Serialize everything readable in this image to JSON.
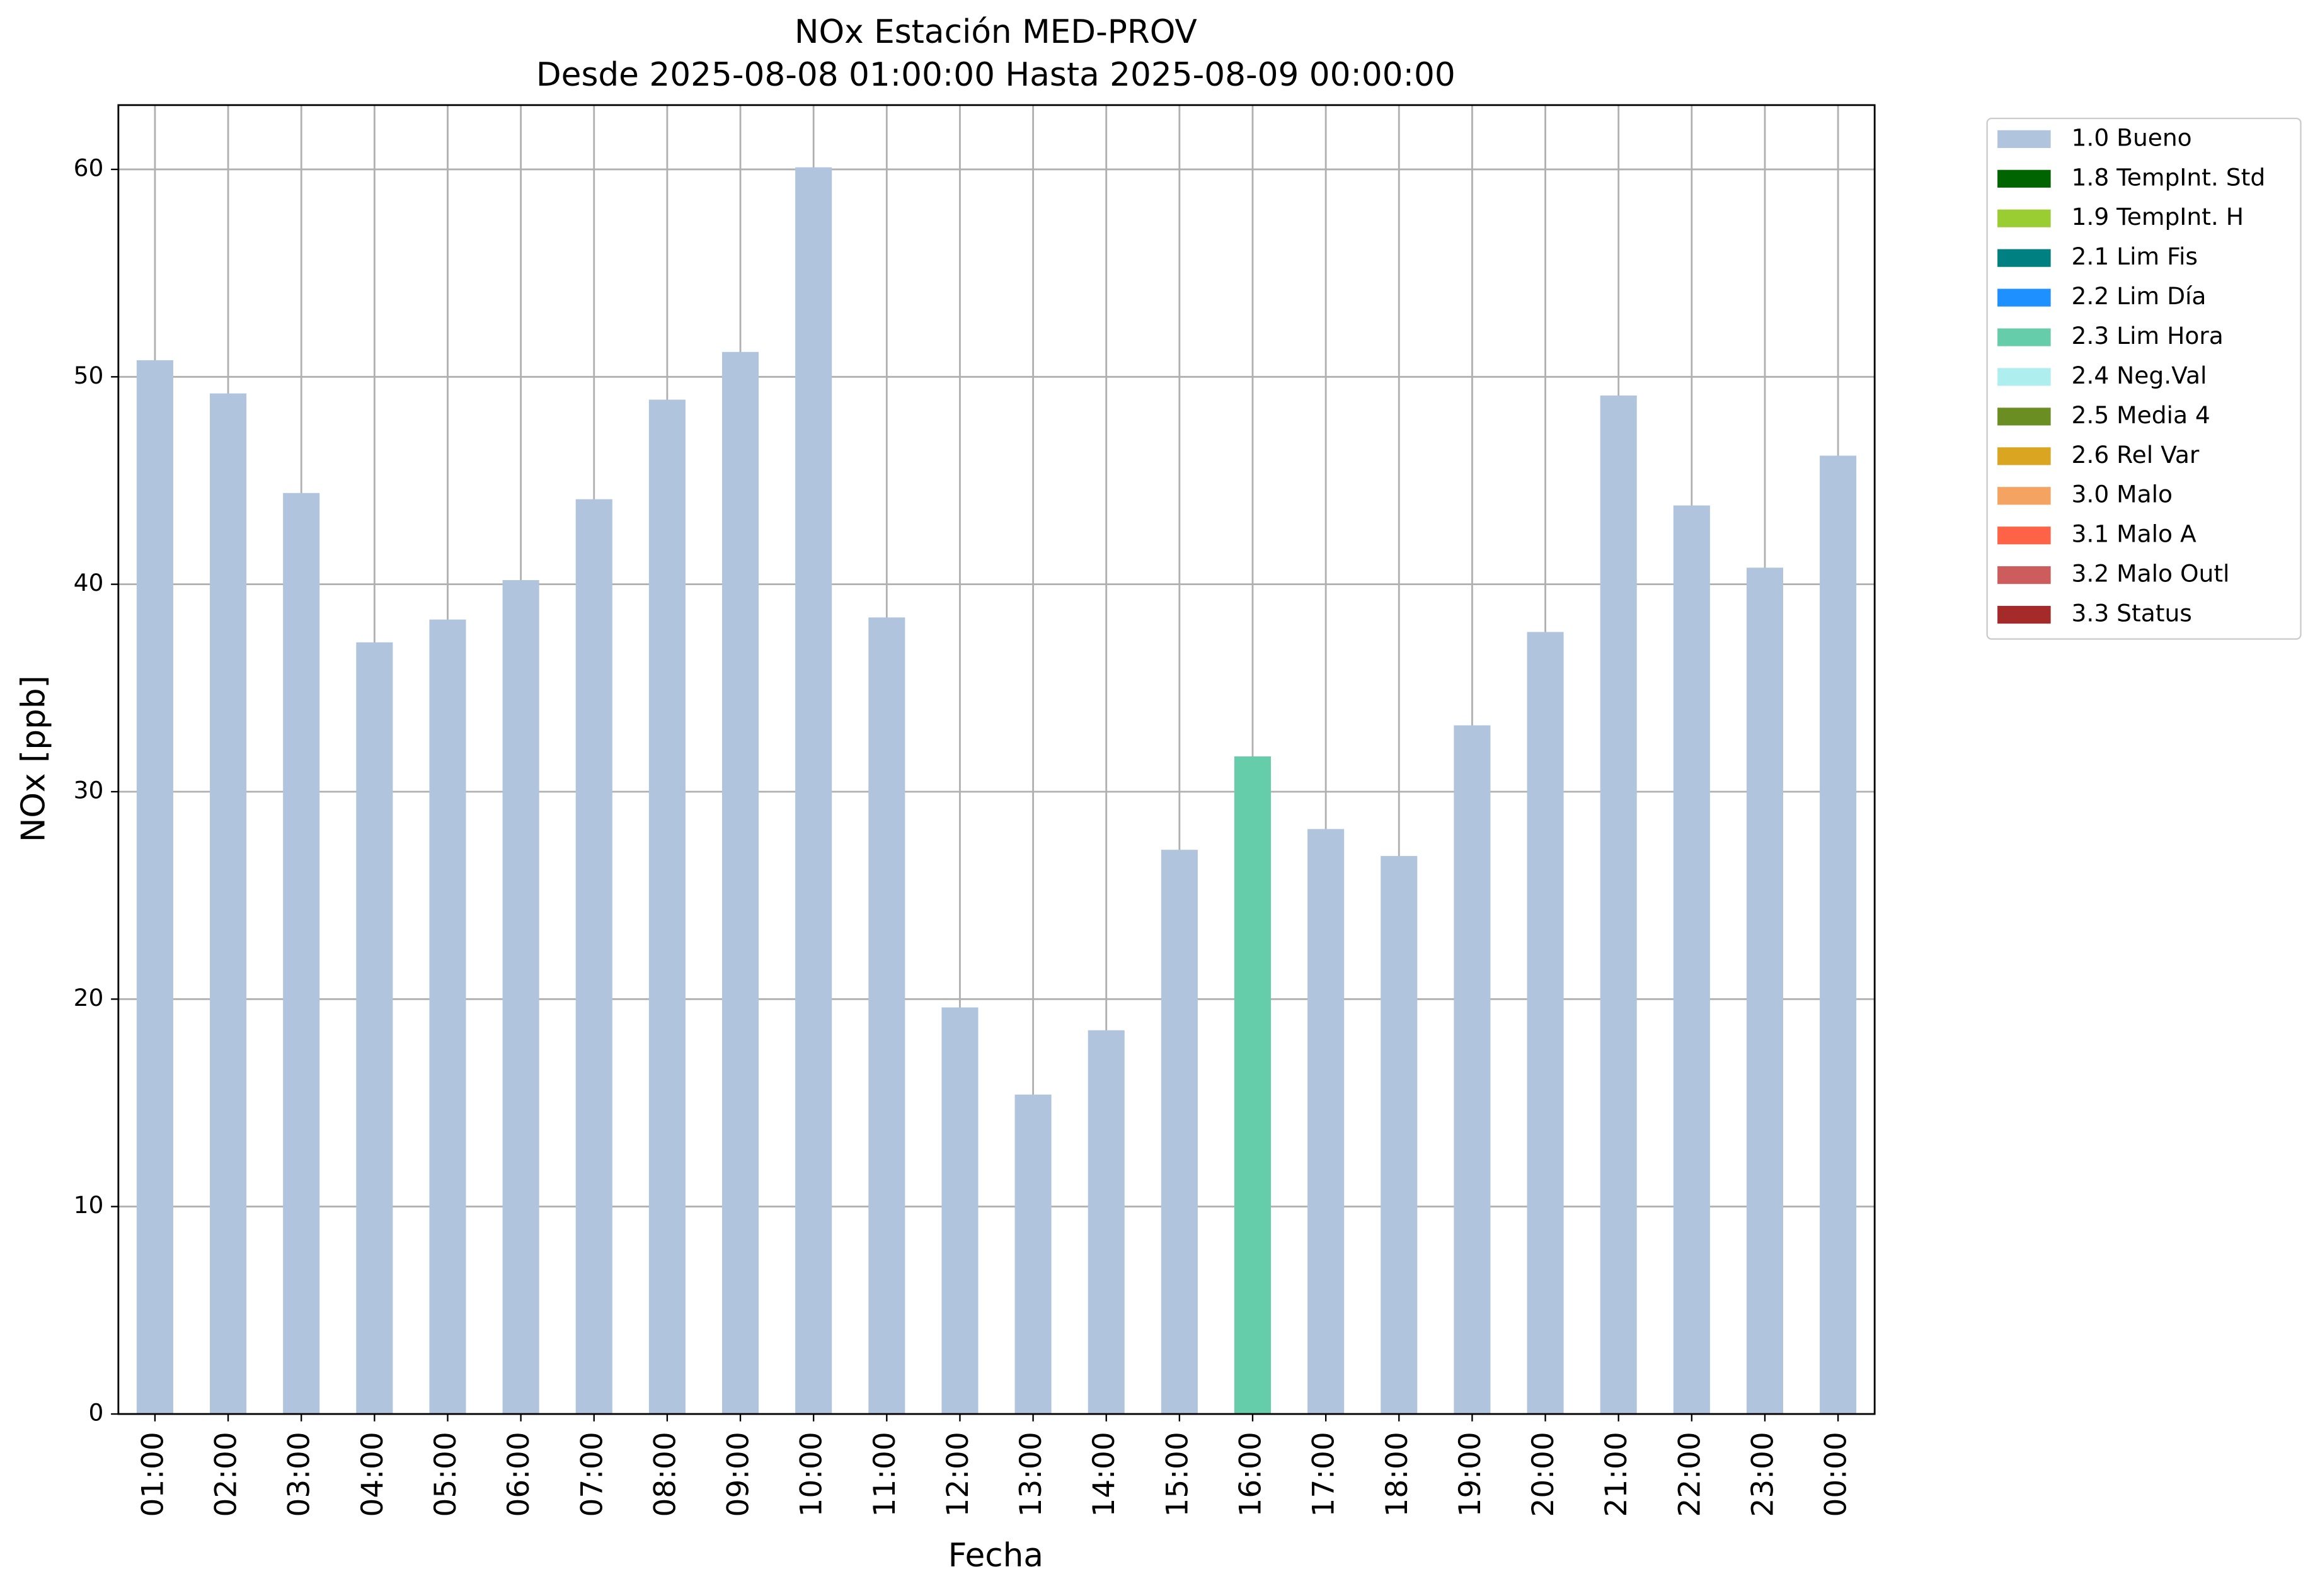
{
  "chart_data": {
    "type": "stacked_bar",
    "title": "NOx Estación MED-PROV",
    "subtitle": "Desde 2025-08-08 01:00:00 Hasta 2025-08-09 00:00:00",
    "x_label": "Fecha",
    "y_label": "NOx [ppb]",
    "categories": [
      "01:00",
      "02:00",
      "03:00",
      "04:00",
      "05:00",
      "06:00",
      "07:00",
      "08:00",
      "09:00",
      "10:00",
      "11:00",
      "12:00",
      "13:00",
      "14:00",
      "15:00",
      "16:00",
      "17:00",
      "18:00",
      "19:00",
      "20:00",
      "21:00",
      "22:00",
      "23:00",
      "00:00"
    ],
    "ylim": [
      0,
      63.1
    ],
    "yticks": [
      0,
      10,
      20,
      30,
      40,
      50,
      60
    ],
    "grid": true,
    "legend": "outside-right",
    "series": [
      {
        "name": "1.0 Bueno",
        "color": "#b0c4de",
        "values": [
          50.8,
          49.2,
          44.4,
          37.2,
          38.3,
          40.2,
          44.1,
          48.9,
          51.2,
          60.1,
          38.4,
          19.6,
          15.4,
          18.5,
          27.2,
          null,
          28.2,
          26.9,
          33.2,
          37.7,
          49.1,
          43.8,
          40.8,
          46.2
        ]
      },
      {
        "name": "1.8 TempInt. Std",
        "color": "#006400",
        "values": [
          null,
          null,
          null,
          null,
          null,
          null,
          null,
          null,
          null,
          null,
          null,
          null,
          null,
          null,
          null,
          null,
          null,
          null,
          null,
          null,
          null,
          null,
          null,
          null
        ]
      },
      {
        "name": "1.9 TempInt. H",
        "color": "#9acd32",
        "values": [
          null,
          null,
          null,
          null,
          null,
          null,
          null,
          null,
          null,
          null,
          null,
          null,
          null,
          null,
          null,
          null,
          null,
          null,
          null,
          null,
          null,
          null,
          null,
          null
        ]
      },
      {
        "name": "2.1 Lim Fis",
        "color": "#008080",
        "values": [
          null,
          null,
          null,
          null,
          null,
          null,
          null,
          null,
          null,
          null,
          null,
          null,
          null,
          null,
          null,
          null,
          null,
          null,
          null,
          null,
          null,
          null,
          null,
          null
        ]
      },
      {
        "name": "2.2 Lim Día",
        "color": "#1e90ff",
        "values": [
          null,
          null,
          null,
          null,
          null,
          null,
          null,
          null,
          null,
          null,
          null,
          null,
          null,
          null,
          null,
          null,
          null,
          null,
          null,
          null,
          null,
          null,
          null,
          null
        ]
      },
      {
        "name": "2.3 Lim Hora",
        "color": "#66cdaa",
        "values": [
          null,
          null,
          null,
          null,
          null,
          null,
          null,
          null,
          null,
          null,
          null,
          null,
          null,
          null,
          null,
          31.7,
          null,
          null,
          null,
          null,
          null,
          null,
          null,
          null
        ]
      },
      {
        "name": "2.4 Neg.Val",
        "color": "#afeeee",
        "values": [
          null,
          null,
          null,
          null,
          null,
          null,
          null,
          null,
          null,
          null,
          null,
          null,
          null,
          null,
          null,
          null,
          null,
          null,
          null,
          null,
          null,
          null,
          null,
          null
        ]
      },
      {
        "name": "2.5 Media 4",
        "color": "#6b8e23",
        "values": [
          null,
          null,
          null,
          null,
          null,
          null,
          null,
          null,
          null,
          null,
          null,
          null,
          null,
          null,
          null,
          null,
          null,
          null,
          null,
          null,
          null,
          null,
          null,
          null
        ]
      },
      {
        "name": "2.6 Rel Var",
        "color": "#daa520",
        "values": [
          null,
          null,
          null,
          null,
          null,
          null,
          null,
          null,
          null,
          null,
          null,
          null,
          null,
          null,
          null,
          null,
          null,
          null,
          null,
          null,
          null,
          null,
          null,
          null
        ]
      },
      {
        "name": "3.0 Malo",
        "color": "#f4a460",
        "values": [
          null,
          null,
          null,
          null,
          null,
          null,
          null,
          null,
          null,
          null,
          null,
          null,
          null,
          null,
          null,
          null,
          null,
          null,
          null,
          null,
          null,
          null,
          null,
          null
        ]
      },
      {
        "name": "3.1 Malo A",
        "color": "#ff6347",
        "values": [
          null,
          null,
          null,
          null,
          null,
          null,
          null,
          null,
          null,
          null,
          null,
          null,
          null,
          null,
          null,
          null,
          null,
          null,
          null,
          null,
          null,
          null,
          null,
          null
        ]
      },
      {
        "name": "3.2 Malo Outl",
        "color": "#cd5c5c",
        "values": [
          null,
          null,
          null,
          null,
          null,
          null,
          null,
          null,
          null,
          null,
          null,
          null,
          null,
          null,
          null,
          null,
          null,
          null,
          null,
          null,
          null,
          null,
          null,
          null
        ]
      },
      {
        "name": "3.3 Status",
        "color": "#a52a2a",
        "values": [
          null,
          null,
          null,
          null,
          null,
          null,
          null,
          null,
          null,
          null,
          null,
          null,
          null,
          null,
          null,
          null,
          null,
          null,
          null,
          null,
          null,
          null,
          null,
          null
        ]
      }
    ]
  }
}
